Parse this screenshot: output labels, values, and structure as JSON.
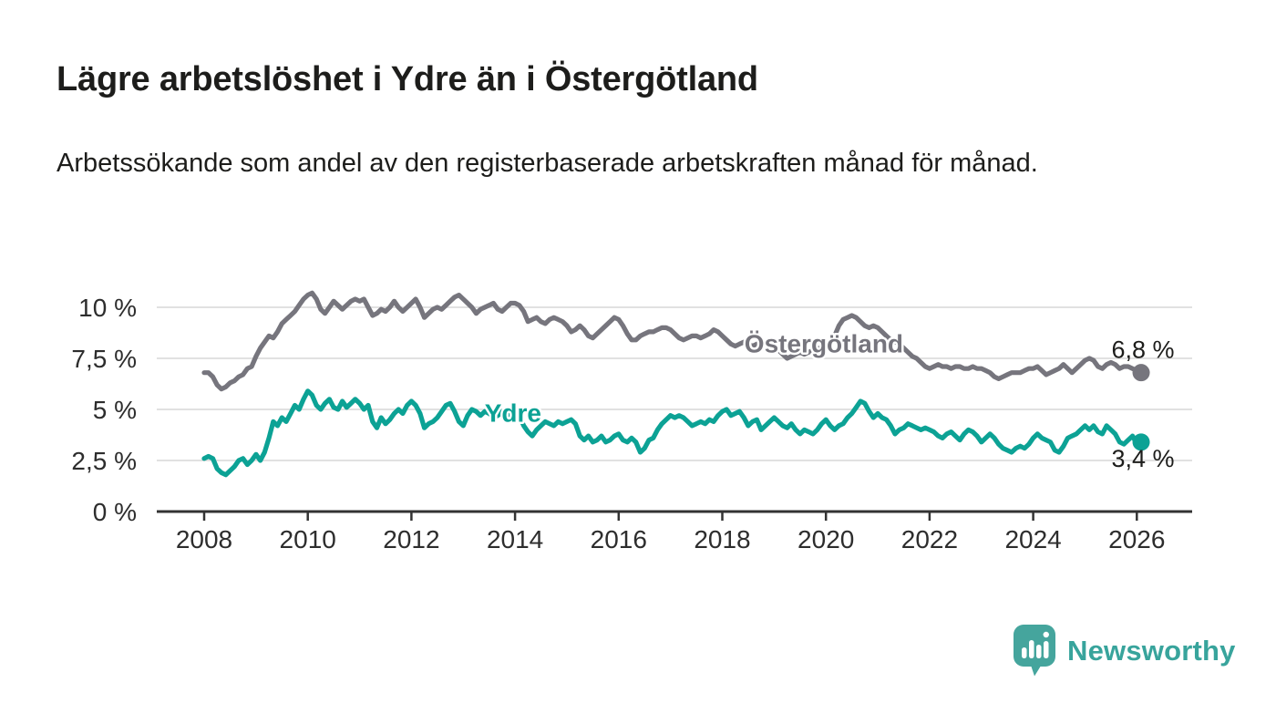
{
  "header": {
    "title": "Lägre arbetslöshet i Ydre än i Östergötland",
    "subtitle": "Arbetssökande som andel av den registerbaserade arbetskraften månad för månad."
  },
  "chart_data": {
    "type": "line",
    "title": "Lägre arbetslöshet i Ydre än i Östergötland",
    "subtitle": "Arbetssökande som andel av den registerbaserade arbetskraften månad för månad.",
    "unit": "%",
    "grid": "horizontal",
    "grid_color": "#e1e1e1",
    "axis_color": "#333333",
    "tick_text_color": "#2d2d2d",
    "annotation_text_color": "#1d1d1b",
    "x_start": 2008.0,
    "x_step_months": 1,
    "x_axis": {
      "ticks": [
        2008,
        2010,
        2012,
        2014,
        2016,
        2018,
        2020,
        2022,
        2024,
        2026
      ]
    },
    "y_axis": {
      "range": [
        0,
        11
      ],
      "ticks": [
        {
          "value": 0,
          "label": "0 %"
        },
        {
          "value": 2.5,
          "label": "2,5 %"
        },
        {
          "value": 5,
          "label": "5 %"
        },
        {
          "value": 7.5,
          "label": "7,5 %"
        },
        {
          "value": 10,
          "label": "10 %"
        }
      ]
    },
    "series": [
      {
        "id": "ostergotland",
        "name": "Östergötland",
        "color": "#76757d",
        "end_label": "6,8 %",
        "end_label_position": "above",
        "label_pos": {
          "year": 2019.96,
          "pct": 7.8
        },
        "values": [
          6.8,
          6.8,
          6.6,
          6.2,
          6.0,
          6.1,
          6.3,
          6.4,
          6.6,
          6.7,
          7.0,
          7.1,
          7.6,
          8.0,
          8.3,
          8.6,
          8.5,
          8.8,
          9.2,
          9.4,
          9.6,
          9.8,
          10.1,
          10.4,
          10.6,
          10.7,
          10.4,
          9.9,
          9.7,
          10.0,
          10.3,
          10.1,
          9.9,
          10.1,
          10.3,
          10.4,
          10.3,
          10.4,
          10.0,
          9.6,
          9.7,
          9.9,
          9.8,
          10.0,
          10.3,
          10.0,
          9.8,
          10.0,
          10.2,
          10.4,
          10.0,
          9.5,
          9.7,
          9.9,
          10.0,
          9.9,
          10.1,
          10.3,
          10.5,
          10.6,
          10.4,
          10.2,
          10.0,
          9.7,
          9.9,
          10.0,
          10.1,
          10.2,
          9.9,
          9.8,
          10.0,
          10.2,
          10.2,
          10.1,
          9.8,
          9.3,
          9.4,
          9.5,
          9.3,
          9.2,
          9.4,
          9.5,
          9.4,
          9.3,
          9.1,
          8.8,
          8.9,
          9.1,
          8.9,
          8.6,
          8.5,
          8.7,
          8.9,
          9.1,
          9.3,
          9.5,
          9.4,
          9.1,
          8.7,
          8.4,
          8.4,
          8.6,
          8.7,
          8.8,
          8.8,
          8.9,
          9.0,
          9.0,
          8.9,
          8.7,
          8.5,
          8.4,
          8.5,
          8.6,
          8.6,
          8.5,
          8.6,
          8.7,
          8.9,
          8.8,
          8.6,
          8.4,
          8.2,
          8.1,
          8.2,
          8.3,
          8.2,
          8.1,
          8.2,
          8.3,
          8.2,
          8.1,
          8.0,
          7.9,
          7.7,
          7.5,
          7.6,
          7.7,
          7.8,
          7.7,
          7.8,
          7.9,
          8.0,
          8.0,
          8.0,
          8.1,
          8.6,
          9.1,
          9.4,
          9.5,
          9.6,
          9.5,
          9.3,
          9.1,
          9.0,
          9.1,
          9.0,
          8.8,
          8.6,
          8.4,
          8.3,
          8.2,
          8.0,
          7.8,
          7.6,
          7.5,
          7.3,
          7.1,
          7.0,
          7.1,
          7.2,
          7.1,
          7.1,
          7.0,
          7.1,
          7.1,
          7.0,
          7.0,
          7.1,
          7.0,
          7.0,
          6.9,
          6.8,
          6.6,
          6.5,
          6.6,
          6.7,
          6.8,
          6.8,
          6.8,
          6.9,
          7.0,
          7.0,
          7.1,
          6.9,
          6.7,
          6.8,
          6.9,
          7.0,
          7.2,
          7.0,
          6.8,
          7.0,
          7.2,
          7.4,
          7.5,
          7.4,
          7.1,
          7.0,
          7.2,
          7.3,
          7.2,
          7.0,
          7.1,
          7.1,
          7.0,
          6.9,
          6.8
        ]
      },
      {
        "id": "ydre",
        "name": "Ydre",
        "color": "#0ca295",
        "end_label": "3,4 %",
        "end_label_position": "below",
        "label_pos": {
          "year": 2013.96,
          "pct": 4.4
        },
        "values": [
          2.6,
          2.7,
          2.6,
          2.1,
          1.9,
          1.8,
          2.0,
          2.2,
          2.5,
          2.6,
          2.3,
          2.5,
          2.8,
          2.5,
          2.9,
          3.6,
          4.4,
          4.2,
          4.6,
          4.4,
          4.8,
          5.2,
          5.0,
          5.5,
          5.9,
          5.7,
          5.2,
          5.0,
          5.3,
          5.5,
          5.1,
          5.0,
          5.4,
          5.1,
          5.3,
          5.5,
          5.3,
          5.0,
          5.2,
          4.4,
          4.1,
          4.6,
          4.3,
          4.5,
          4.8,
          5.0,
          4.8,
          5.2,
          5.4,
          5.2,
          4.8,
          4.1,
          4.3,
          4.4,
          4.6,
          4.9,
          5.2,
          5.3,
          4.9,
          4.4,
          4.2,
          4.7,
          5.0,
          4.9,
          4.7,
          4.9,
          4.8,
          4.6,
          4.7,
          4.9,
          4.7,
          4.8,
          4.6,
          4.7,
          4.2,
          3.9,
          3.7,
          4.0,
          4.2,
          4.4,
          4.3,
          4.2,
          4.4,
          4.3,
          4.4,
          4.5,
          4.3,
          3.7,
          3.5,
          3.7,
          3.4,
          3.5,
          3.7,
          3.4,
          3.5,
          3.7,
          3.8,
          3.5,
          3.4,
          3.6,
          3.4,
          2.9,
          3.1,
          3.5,
          3.6,
          4.0,
          4.3,
          4.5,
          4.7,
          4.6,
          4.7,
          4.6,
          4.4,
          4.2,
          4.3,
          4.4,
          4.3,
          4.5,
          4.4,
          4.7,
          4.9,
          5.0,
          4.7,
          4.8,
          4.9,
          4.6,
          4.2,
          4.4,
          4.5,
          4.0,
          4.2,
          4.4,
          4.6,
          4.4,
          4.2,
          4.1,
          4.3,
          4.0,
          3.8,
          4.0,
          3.9,
          3.8,
          4.0,
          4.3,
          4.5,
          4.2,
          4.0,
          4.2,
          4.3,
          4.6,
          4.8,
          5.1,
          5.4,
          5.3,
          4.9,
          4.6,
          4.8,
          4.6,
          4.5,
          4.2,
          3.8,
          4.0,
          4.1,
          4.3,
          4.2,
          4.1,
          4.0,
          4.1,
          4.0,
          3.9,
          3.7,
          3.6,
          3.8,
          3.9,
          3.7,
          3.5,
          3.8,
          4.0,
          3.9,
          3.7,
          3.4,
          3.6,
          3.8,
          3.6,
          3.3,
          3.1,
          3.0,
          2.9,
          3.1,
          3.2,
          3.1,
          3.3,
          3.6,
          3.8,
          3.6,
          3.5,
          3.4,
          3.0,
          2.9,
          3.2,
          3.6,
          3.7,
          3.8,
          4.0,
          4.2,
          4.0,
          4.2,
          3.9,
          3.8,
          4.2,
          4.0,
          3.8,
          3.4,
          3.3,
          3.5,
          3.7,
          3.3,
          3.4
        ]
      }
    ]
  },
  "footer": {
    "brand": "Newsworthy",
    "logo_icon": "speech-bubble-bar-chart-icon",
    "brand_color": "#38a49c",
    "icon_color": "#45a59d"
  }
}
